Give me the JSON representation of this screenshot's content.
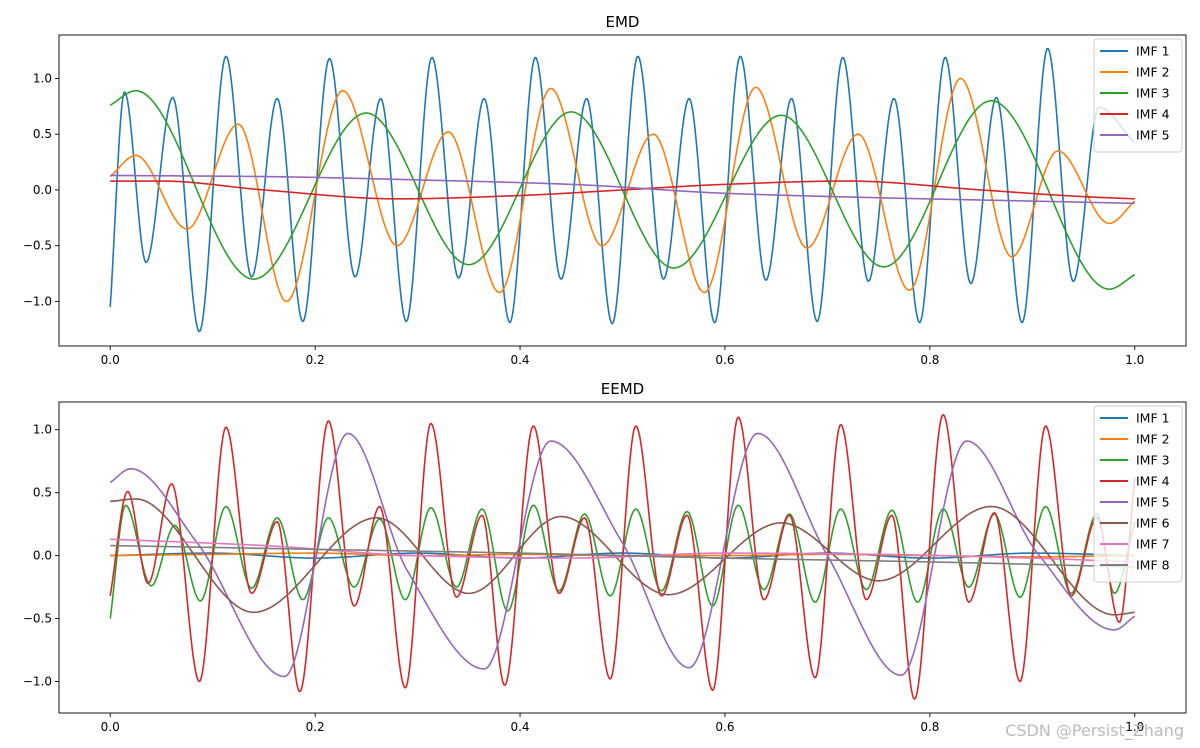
{
  "watermark": "CSDN @Persist_Zhang",
  "chart_data": [
    {
      "type": "line",
      "title": "EMD",
      "xlabel": "",
      "ylabel": "",
      "xlim": [
        -0.05,
        1.05
      ],
      "ylim": [
        -1.4,
        1.39
      ],
      "xticks": [
        0.0,
        0.2,
        0.4,
        0.6,
        0.8,
        1.0
      ],
      "xtick_labels": [
        "0.0",
        "0.2",
        "0.4",
        "0.6",
        "0.8",
        "1.0"
      ],
      "yticks": [
        -1.0,
        -0.5,
        0.0,
        0.5,
        1.0
      ],
      "ytick_labels": [
        "−1.0",
        "−0.5",
        "0.0",
        "0.5",
        "1.0"
      ],
      "grid": false,
      "legend_position": "top-right",
      "series": [
        {
          "name": "IMF 1",
          "color": "#1f77b4",
          "x": [
            0.0,
            0.014,
            0.035,
            0.061,
            0.087,
            0.113,
            0.138,
            0.163,
            0.188,
            0.214,
            0.239,
            0.264,
            0.289,
            0.314,
            0.34,
            0.365,
            0.39,
            0.415,
            0.44,
            0.465,
            0.49,
            0.515,
            0.54,
            0.565,
            0.59,
            0.615,
            0.64,
            0.665,
            0.69,
            0.715,
            0.74,
            0.765,
            0.79,
            0.815,
            0.84,
            0.865,
            0.89,
            0.915,
            0.94,
            0.965,
            1.0
          ],
          "y": [
            -1.05,
            0.88,
            -0.65,
            0.83,
            -1.27,
            1.2,
            -0.78,
            0.82,
            -1.18,
            1.18,
            -0.78,
            0.82,
            -1.18,
            1.19,
            -0.79,
            0.82,
            -1.19,
            1.19,
            -0.8,
            0.82,
            -1.2,
            1.2,
            -0.8,
            0.82,
            -1.19,
            1.2,
            -0.81,
            0.82,
            -1.18,
            1.19,
            -0.82,
            0.82,
            -1.19,
            1.19,
            -0.84,
            0.83,
            -1.19,
            1.27,
            -0.82,
            0.74,
            0.42
          ]
        },
        {
          "name": "IMF 2",
          "color": "#ff7f0e",
          "x": [
            0.0,
            0.025,
            0.075,
            0.125,
            0.172,
            0.227,
            0.28,
            0.33,
            0.38,
            0.43,
            0.48,
            0.53,
            0.58,
            0.63,
            0.68,
            0.73,
            0.78,
            0.83,
            0.88,
            0.925,
            0.975,
            1.0
          ],
          "y": [
            0.12,
            0.31,
            -0.35,
            0.59,
            -1.0,
            0.89,
            -0.5,
            0.52,
            -0.92,
            0.91,
            -0.5,
            0.5,
            -0.92,
            0.92,
            -0.52,
            0.5,
            -0.9,
            1.0,
            -0.6,
            0.35,
            -0.3,
            -0.1
          ]
        },
        {
          "name": "IMF 3",
          "color": "#2ca02c",
          "x": [
            0.0,
            0.025,
            0.14,
            0.25,
            0.35,
            0.45,
            0.55,
            0.655,
            0.755,
            0.86,
            0.975,
            1.0
          ],
          "y": [
            0.76,
            0.89,
            -0.8,
            0.69,
            -0.67,
            0.7,
            -0.7,
            0.67,
            -0.69,
            0.8,
            -0.89,
            -0.76
          ]
        },
        {
          "name": "IMF 4",
          "color": "#d62728",
          "x": [
            0.0,
            0.05,
            0.15,
            0.28,
            0.4,
            0.5,
            0.6,
            0.72,
            0.85,
            0.95,
            1.0
          ],
          "y": [
            0.08,
            0.08,
            0.0,
            -0.08,
            -0.05,
            0.0,
            0.05,
            0.08,
            0.0,
            -0.06,
            -0.08
          ]
        },
        {
          "name": "IMF 5",
          "color": "#9467bd",
          "x": [
            0.0,
            0.15,
            0.3,
            0.45,
            0.6,
            0.75,
            0.9,
            1.0
          ],
          "y": [
            0.13,
            0.12,
            0.09,
            0.05,
            -0.03,
            -0.07,
            -0.1,
            -0.12
          ]
        }
      ]
    },
    {
      "type": "line",
      "title": "EEMD",
      "xlabel": "",
      "ylabel": "",
      "xlim": [
        -0.05,
        1.05
      ],
      "ylim": [
        -1.25,
        1.22
      ],
      "xticks": [
        0.0,
        0.2,
        0.4,
        0.6,
        0.8,
        1.0
      ],
      "xtick_labels": [
        "0.0",
        "0.2",
        "0.4",
        "0.6",
        "0.8",
        "1.0"
      ],
      "yticks": [
        -1.0,
        -0.5,
        0.0,
        0.5,
        1.0
      ],
      "ytick_labels": [
        "−1.0",
        "−0.5",
        "0.0",
        "0.5",
        "1.0"
      ],
      "grid": false,
      "legend_position": "top-right",
      "series": [
        {
          "name": "IMF 1",
          "color": "#1f77b4",
          "x": [
            0.0,
            0.1,
            0.2,
            0.3,
            0.4,
            0.5,
            0.6,
            0.7,
            0.8,
            0.9,
            1.0
          ],
          "y": [
            0.0,
            0.02,
            -0.02,
            0.02,
            -0.02,
            0.02,
            -0.02,
            0.02,
            -0.02,
            0.02,
            0.0
          ]
        },
        {
          "name": "IMF 2",
          "color": "#ff7f0e",
          "x": [
            0.0,
            0.1,
            0.2,
            0.3,
            0.4,
            0.5,
            0.6,
            0.7,
            0.8,
            0.9,
            1.0
          ],
          "y": [
            0.0,
            0.01,
            0.02,
            0.0,
            0.01,
            0.0,
            0.0,
            0.01,
            0.0,
            -0.01,
            0.0
          ]
        },
        {
          "name": "IMF 3",
          "color": "#2ca02c",
          "x": [
            0.0,
            0.015,
            0.04,
            0.063,
            0.088,
            0.113,
            0.138,
            0.163,
            0.188,
            0.213,
            0.238,
            0.263,
            0.288,
            0.313,
            0.338,
            0.363,
            0.388,
            0.413,
            0.438,
            0.463,
            0.488,
            0.513,
            0.538,
            0.563,
            0.588,
            0.613,
            0.638,
            0.663,
            0.688,
            0.713,
            0.738,
            0.763,
            0.788,
            0.813,
            0.838,
            0.863,
            0.888,
            0.913,
            0.938,
            0.963,
            0.98,
            1.0
          ],
          "y": [
            -0.5,
            0.4,
            -0.24,
            0.24,
            -0.36,
            0.39,
            -0.26,
            0.3,
            -0.35,
            0.3,
            -0.25,
            0.29,
            -0.35,
            0.38,
            -0.25,
            0.37,
            -0.44,
            0.4,
            -0.28,
            0.33,
            -0.32,
            0.37,
            -0.28,
            0.35,
            -0.4,
            0.4,
            -0.27,
            0.33,
            -0.37,
            0.37,
            -0.27,
            0.36,
            -0.37,
            0.37,
            -0.25,
            0.33,
            -0.33,
            0.39,
            -0.3,
            0.33,
            -0.3,
            0.27
          ]
        },
        {
          "name": "IMF 4",
          "color": "#d62728",
          "x": [
            0.0,
            0.017,
            0.037,
            0.06,
            0.087,
            0.113,
            0.138,
            0.163,
            0.185,
            0.213,
            0.238,
            0.263,
            0.288,
            0.313,
            0.338,
            0.363,
            0.385,
            0.413,
            0.438,
            0.463,
            0.488,
            0.513,
            0.538,
            0.563,
            0.588,
            0.613,
            0.638,
            0.663,
            0.688,
            0.713,
            0.738,
            0.763,
            0.785,
            0.813,
            0.838,
            0.863,
            0.888,
            0.913,
            0.938,
            0.963,
            0.985,
            1.0
          ],
          "y": [
            -0.32,
            0.51,
            -0.22,
            0.57,
            -1.0,
            1.02,
            -0.3,
            0.27,
            -1.08,
            1.07,
            -0.4,
            0.39,
            -1.05,
            1.05,
            -0.33,
            0.32,
            -1.03,
            1.03,
            -0.3,
            0.3,
            -0.98,
            1.03,
            -0.32,
            0.32,
            -1.07,
            1.1,
            -0.35,
            0.32,
            -0.97,
            1.04,
            -0.35,
            0.32,
            -1.14,
            1.12,
            -0.37,
            0.34,
            -1.0,
            1.03,
            -0.32,
            0.3,
            -0.53,
            0.62
          ]
        },
        {
          "name": "IMF 5",
          "color": "#9467bd",
          "x": [
            0.0,
            0.02,
            0.085,
            0.17,
            0.232,
            0.29,
            0.365,
            0.43,
            0.5,
            0.565,
            0.632,
            0.7,
            0.772,
            0.836,
            0.905,
            0.98,
            1.0
          ],
          "y": [
            0.58,
            0.69,
            0.1,
            -0.96,
            0.97,
            -0.12,
            -0.9,
            0.91,
            0.1,
            -0.89,
            0.97,
            0.0,
            -0.95,
            0.91,
            0.02,
            -0.59,
            -0.48
          ]
        },
        {
          "name": "IMF 6",
          "color": "#8c564b",
          "x": [
            0.0,
            0.025,
            0.14,
            0.26,
            0.35,
            0.44,
            0.545,
            0.655,
            0.75,
            0.86,
            0.98,
            1.0
          ],
          "y": [
            0.43,
            0.45,
            -0.45,
            0.3,
            -0.3,
            0.31,
            -0.31,
            0.26,
            -0.2,
            0.39,
            -0.47,
            -0.45
          ]
        },
        {
          "name": "IMF 7",
          "color": "#e377c2",
          "x": [
            0.0,
            0.15,
            0.3,
            0.45,
            0.6,
            0.75,
            0.9,
            1.0
          ],
          "y": [
            0.13,
            0.08,
            0.0,
            -0.02,
            0.02,
            0.01,
            -0.02,
            -0.05
          ]
        },
        {
          "name": "IMF 8",
          "color": "#7f7f7f",
          "x": [
            0.0,
            0.2,
            0.4,
            0.6,
            0.8,
            1.0
          ],
          "y": [
            0.08,
            0.05,
            0.02,
            -0.02,
            -0.05,
            -0.09
          ]
        }
      ]
    }
  ]
}
